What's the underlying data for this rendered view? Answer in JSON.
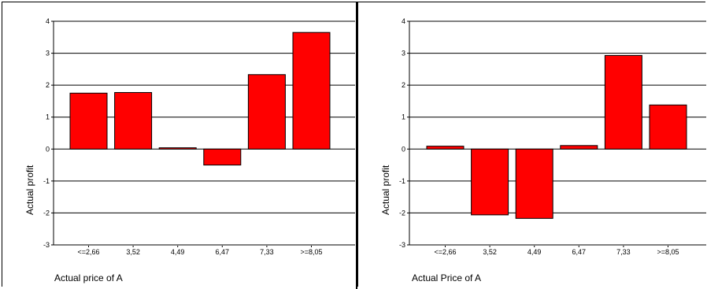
{
  "chart_data": [
    {
      "type": "bar",
      "categories": [
        "<=2,66",
        "3,52",
        "4,49",
        "6,47",
        "7,33",
        ">=8,05"
      ],
      "values": [
        1.75,
        1.77,
        0.04,
        -0.5,
        2.33,
        3.65
      ],
      "xlabel": "Actual price of A",
      "ylabel": "Actual profit",
      "ylim": [
        -3,
        4
      ],
      "yticks": [
        "-3",
        "-2",
        "-1",
        "0",
        "1",
        "2",
        "3",
        "4"
      ],
      "grid": true,
      "bar_color": "#ff0000"
    },
    {
      "type": "bar",
      "categories": [
        "<=2,66",
        "3,52",
        "4,49",
        "6,47",
        "7,33",
        ">=8,05"
      ],
      "values": [
        0.09,
        -2.06,
        -2.17,
        0.11,
        2.93,
        1.38
      ],
      "xlabel": "Actual Price of A",
      "ylabel": "Actual profit",
      "ylim": [
        -3,
        4
      ],
      "yticks": [
        "-3",
        "-2",
        "-1",
        "0",
        "1",
        "2",
        "3",
        "4"
      ],
      "grid": true,
      "bar_color": "#ff0000"
    }
  ]
}
